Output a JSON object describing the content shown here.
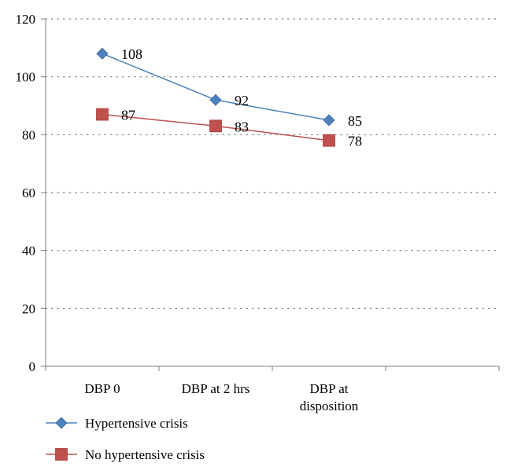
{
  "chart_data": {
    "type": "line",
    "title": "",
    "xlabel": "",
    "ylabel": "",
    "ylim": [
      0,
      120
    ],
    "yticks": [
      0,
      20,
      40,
      60,
      80,
      100,
      120
    ],
    "grid": true,
    "legend_position": "bottom-left",
    "categories": [
      [
        "DBP 0"
      ],
      [
        "DBP at 2 hrs"
      ],
      [
        "DBP at",
        "disposition"
      ]
    ],
    "series": [
      {
        "name": "Hypertensive crisis",
        "values": [
          108,
          92,
          85
        ],
        "color": "#4f81bd",
        "marker": "diamond"
      },
      {
        "name": "No hypertensive crisis",
        "values": [
          87,
          83,
          78
        ],
        "color": "#c0504d",
        "marker": "square"
      }
    ]
  }
}
